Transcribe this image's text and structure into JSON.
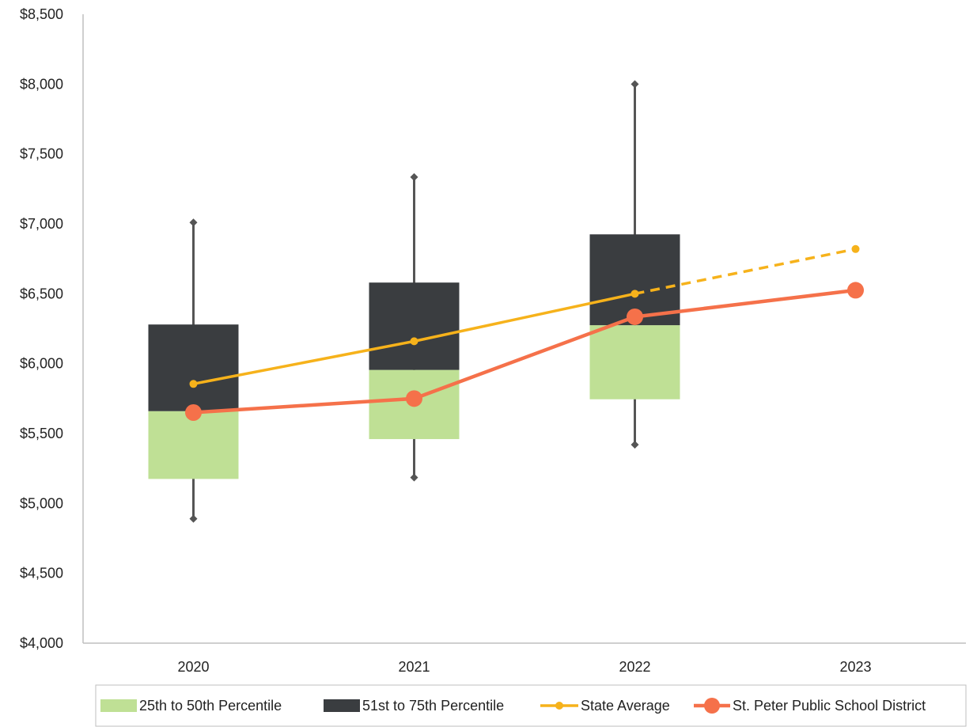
{
  "chart_data": {
    "type": "box-line",
    "categories": [
      "2020",
      "2021",
      "2022",
      "2023"
    ],
    "ylim": [
      4000,
      8500
    ],
    "y_ticks": [
      {
        "value": 4000,
        "label": "$4,000"
      },
      {
        "value": 4500,
        "label": "$4,500"
      },
      {
        "value": 5000,
        "label": "$5,000"
      },
      {
        "value": 5500,
        "label": "$5,500"
      },
      {
        "value": 6000,
        "label": "$6,000"
      },
      {
        "value": 6500,
        "label": "$6,500"
      },
      {
        "value": 7000,
        "label": "$7,000"
      },
      {
        "value": 7500,
        "label": "$7,500"
      },
      {
        "value": 8000,
        "label": "$8,000"
      },
      {
        "value": 8500,
        "label": "$8,500"
      }
    ],
    "boxes": [
      {
        "category": "2020",
        "min": 4890,
        "p25": 5175,
        "median": 5660,
        "p75": 6280,
        "max": 7010
      },
      {
        "category": "2021",
        "min": 5185,
        "p25": 5460,
        "median": 5955,
        "p75": 6580,
        "max": 7335
      },
      {
        "category": "2022",
        "min": 5420,
        "p25": 5745,
        "median": 6275,
        "p75": 6925,
        "max": 8000
      }
    ],
    "series": [
      {
        "name": "State Average",
        "values": [
          5855,
          6160,
          6500,
          6820
        ],
        "projected_from_index": 2
      },
      {
        "name": "St. Peter Public School District",
        "values": [
          5650,
          5750,
          6335,
          6525
        ]
      }
    ],
    "legend": {
      "placement": "bottom",
      "entries": [
        {
          "label": "25th to 50th Percentile",
          "kind": "box-lower"
        },
        {
          "label": "51st to 75th Percentile",
          "kind": "box-upper"
        },
        {
          "label": "State Average",
          "kind": "line-small"
        },
        {
          "label": "St. Peter Public School District",
          "kind": "line-large"
        }
      ]
    },
    "colors": {
      "box_lower": "#bfe095",
      "box_upper": "#3a3d40",
      "whisker": "#555555",
      "state_average": "#f6b21b",
      "district": "#f5714a",
      "axis": "#bfbfbf"
    },
    "grid": false
  }
}
